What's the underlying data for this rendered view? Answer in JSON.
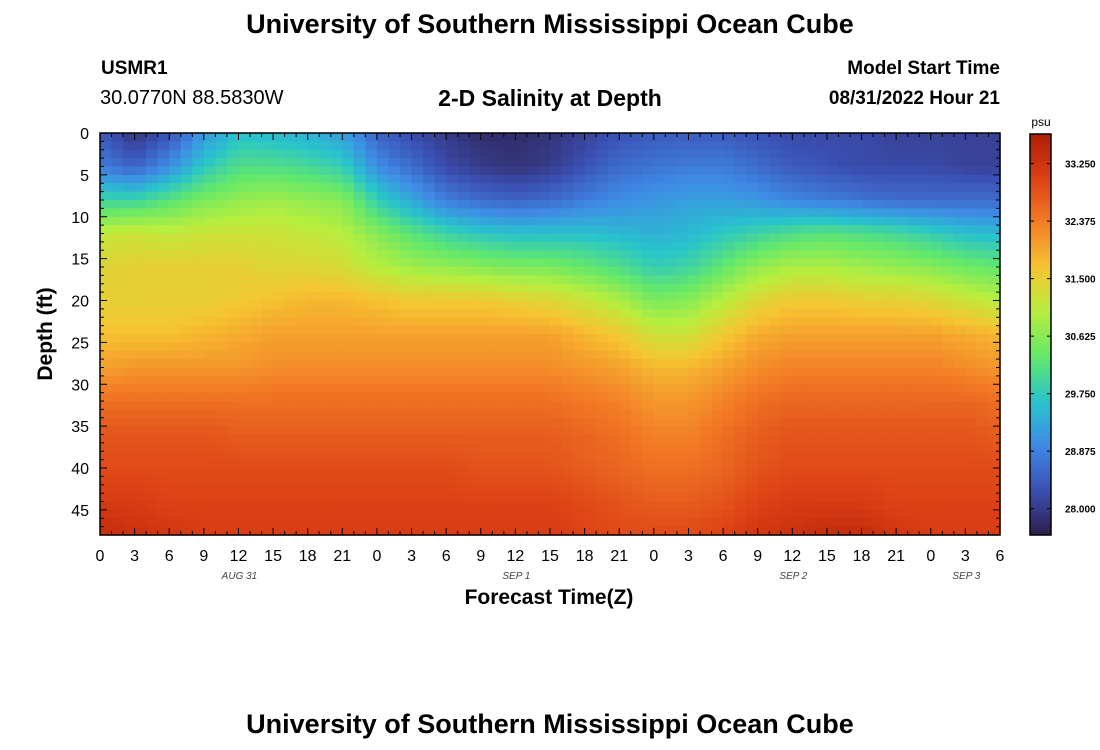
{
  "header": {
    "title": "University of Southern Mississippi Ocean Cube",
    "station_id": "USMR1",
    "station_coords": "30.0770N  88.5830W",
    "plot_title": "2-D Salinity at Depth",
    "model_start_label": "Model Start Time",
    "model_start_value": "08/31/2022 Hour 21"
  },
  "footer": {
    "title": "University of Southern Mississippi Ocean Cube"
  },
  "colorbar": {
    "unit": "psu",
    "ticks": [
      "33.250",
      "32.375",
      "31.500",
      "30.625",
      "29.750",
      "28.875",
      "28.000"
    ]
  },
  "chart_data": {
    "type": "heatmap",
    "title": "2-D Salinity at Depth",
    "xlabel": "Forecast Time(Z)",
    "ylabel": "Depth (ft)",
    "x_ticks": [
      "0",
      "3",
      "6",
      "9",
      "12",
      "15",
      "18",
      "21",
      "0",
      "3",
      "6",
      "9",
      "12",
      "15",
      "18",
      "21",
      "0",
      "3",
      "6",
      "9",
      "12",
      "15",
      "18",
      "21",
      "0",
      "3",
      "6"
    ],
    "x_date_labels": [
      {
        "label": "AUG 31",
        "hour_index": 4
      },
      {
        "label": "SEP 1",
        "hour_index": 12
      },
      {
        "label": "SEP 2",
        "hour_index": 20
      },
      {
        "label": "SEP 3",
        "hour_index": 25
      }
    ],
    "xlim_hours": [
      0,
      78
    ],
    "y_ticks": [
      "0",
      "5",
      "10",
      "15",
      "20",
      "25",
      "30",
      "35",
      "40",
      "45"
    ],
    "ylim_ft": [
      0,
      48
    ],
    "z_range_psu": [
      27.6,
      33.7
    ],
    "colorscale": [
      "#2e1e4b",
      "#3b50b4",
      "#3f8ae6",
      "#28c4cc",
      "#63e86a",
      "#b7ee3e",
      "#f6c532",
      "#f37d26",
      "#dc4015",
      "#af1e05"
    ],
    "columns_hours": [
      0,
      3,
      6,
      9,
      12,
      15,
      18,
      21,
      24,
      27,
      30,
      33,
      36,
      39,
      42,
      45,
      48,
      51,
      54,
      57,
      60,
      63,
      66,
      69,
      72,
      75,
      78
    ],
    "rows_depth_ft": [
      0,
      4,
      8,
      12,
      16,
      20,
      24,
      28,
      32,
      36,
      40,
      44,
      48
    ],
    "salinity_psu": [
      [
        28.4,
        27.9,
        28.3,
        29.1,
        29.6,
        29.5,
        29.4,
        29.2,
        28.5,
        28.2,
        28.0,
        27.8,
        27.8,
        27.9,
        28.1,
        28.3,
        28.4,
        28.4,
        28.4,
        28.3,
        28.2,
        28.2,
        28.2,
        28.1,
        28.1,
        28.1,
        28.1
      ],
      [
        28.8,
        28.5,
        29.0,
        29.7,
        30.1,
        30.1,
        30.0,
        29.8,
        29.0,
        28.6,
        28.2,
        28.0,
        27.9,
        28.0,
        28.3,
        28.6,
        28.7,
        28.8,
        28.8,
        28.6,
        28.4,
        28.3,
        28.2,
        28.2,
        28.2,
        28.1,
        28.1
      ],
      [
        29.9,
        29.9,
        30.2,
        30.5,
        30.7,
        30.8,
        30.7,
        30.6,
        29.8,
        29.3,
        28.8,
        28.6,
        28.5,
        28.6,
        28.8,
        29.0,
        29.1,
        29.2,
        29.2,
        29.1,
        28.9,
        28.8,
        28.7,
        28.6,
        28.6,
        28.6,
        28.6
      ],
      [
        31.1,
        31.2,
        31.1,
        31.2,
        31.2,
        31.2,
        31.1,
        31.0,
        30.6,
        30.2,
        29.9,
        29.7,
        29.6,
        29.6,
        29.6,
        29.5,
        29.4,
        29.5,
        29.7,
        29.9,
        30.1,
        30.2,
        30.1,
        30.0,
        29.8,
        29.6,
        29.5
      ],
      [
        31.4,
        31.5,
        31.5,
        31.5,
        31.5,
        31.4,
        31.4,
        31.3,
        31.0,
        30.8,
        30.7,
        30.6,
        30.5,
        30.5,
        30.3,
        30.1,
        29.8,
        29.9,
        30.3,
        30.7,
        30.9,
        30.9,
        30.8,
        30.7,
        30.6,
        30.4,
        30.3
      ],
      [
        31.5,
        31.5,
        31.5,
        31.5,
        31.6,
        31.7,
        31.8,
        31.8,
        31.7,
        31.6,
        31.6,
        31.6,
        31.5,
        31.4,
        31.2,
        30.9,
        30.5,
        30.6,
        31.0,
        31.4,
        31.6,
        31.6,
        31.5,
        31.5,
        31.4,
        31.2,
        31.0
      ],
      [
        31.7,
        31.7,
        31.7,
        31.8,
        31.9,
        32.0,
        32.0,
        32.0,
        32.0,
        32.0,
        32.0,
        32.0,
        32.0,
        32.0,
        31.8,
        31.6,
        31.2,
        31.2,
        31.6,
        31.9,
        32.0,
        32.0,
        32.0,
        32.0,
        32.0,
        31.9,
        31.8
      ],
      [
        32.0,
        32.1,
        32.1,
        32.1,
        32.1,
        32.2,
        32.2,
        32.2,
        32.2,
        32.2,
        32.2,
        32.2,
        32.2,
        32.2,
        32.1,
        32.0,
        31.8,
        31.8,
        32.0,
        32.2,
        32.3,
        32.3,
        32.3,
        32.3,
        32.3,
        32.2,
        32.1
      ],
      [
        32.5,
        32.5,
        32.5,
        32.5,
        32.5,
        32.5,
        32.5,
        32.5,
        32.5,
        32.5,
        32.5,
        32.5,
        32.5,
        32.5,
        32.4,
        32.3,
        32.1,
        32.1,
        32.3,
        32.5,
        32.6,
        32.6,
        32.6,
        32.6,
        32.6,
        32.6,
        32.5
      ],
      [
        32.8,
        32.8,
        32.8,
        32.8,
        32.7,
        32.7,
        32.7,
        32.7,
        32.7,
        32.7,
        32.7,
        32.7,
        32.7,
        32.7,
        32.6,
        32.5,
        32.3,
        32.3,
        32.5,
        32.7,
        32.8,
        32.8,
        32.8,
        32.8,
        32.8,
        32.8,
        32.7
      ],
      [
        32.9,
        32.9,
        32.9,
        32.9,
        32.9,
        32.9,
        32.9,
        32.9,
        32.9,
        32.9,
        32.9,
        32.8,
        32.8,
        32.8,
        32.7,
        32.6,
        32.5,
        32.5,
        32.6,
        32.8,
        32.9,
        32.9,
        32.9,
        32.9,
        32.9,
        32.9,
        32.9
      ],
      [
        33.1,
        33.1,
        33.0,
        33.0,
        33.0,
        33.0,
        33.0,
        33.0,
        33.0,
        33.0,
        33.0,
        33.0,
        33.0,
        33.0,
        32.9,
        32.8,
        32.7,
        32.7,
        32.8,
        33.0,
        33.1,
        33.1,
        33.1,
        33.0,
        33.0,
        33.0,
        33.0
      ],
      [
        33.4,
        33.3,
        33.2,
        33.1,
        33.1,
        33.1,
        33.1,
        33.1,
        33.1,
        33.1,
        33.1,
        33.1,
        33.1,
        33.1,
        33.0,
        32.9,
        32.9,
        32.9,
        33.0,
        33.2,
        33.3,
        33.4,
        33.4,
        33.2,
        33.1,
        33.1,
        33.1
      ]
    ]
  }
}
